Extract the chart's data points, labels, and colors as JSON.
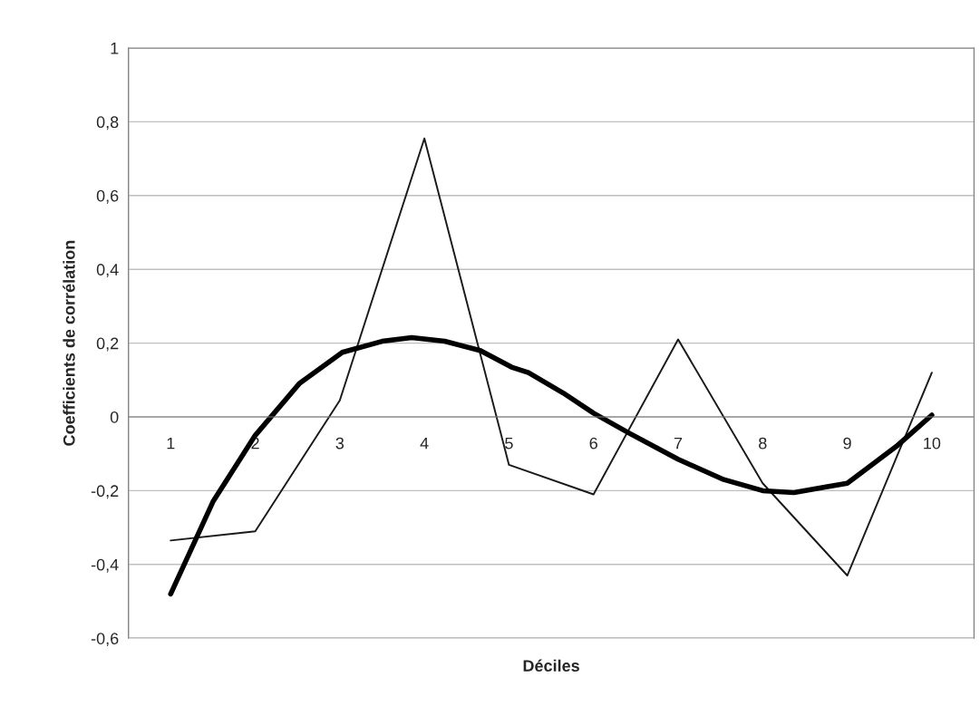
{
  "chart_data": {
    "type": "line",
    "xlabel": "Déciles",
    "ylabel": "Coefficients de corrélation",
    "x": [
      1,
      2,
      3,
      4,
      5,
      6,
      7,
      8,
      9,
      10
    ],
    "series": [
      {
        "color": "#1a1a1a",
        "values": [
          -0.335,
          -0.31,
          0.045,
          0.755,
          -0.13,
          -0.21,
          0.21,
          -0.18,
          -0.43,
          0.12
        ]
      },
      {
        "type": "line",
        "color": "#000000",
        "x": [
          1,
          1.31,
          1.5,
          2,
          2.52,
          3.03,
          3.5,
          3.85,
          4.24,
          4.66,
          5.03,
          5.23,
          5.64,
          6,
          6.43,
          7,
          7.54,
          8,
          8.37,
          8.75,
          9,
          9.58,
          10
        ],
        "values": [
          -0.48,
          -0.325,
          -0.23,
          -0.05,
          0.09,
          0.175,
          0.205,
          0.215,
          0.205,
          0.18,
          0.135,
          0.12,
          0.065,
          0.01,
          -0.045,
          -0.115,
          -0.17,
          -0.2,
          -0.205,
          -0.19,
          -0.18,
          -0.08,
          0.005
        ]
      }
    ],
    "xlim": [
      0.5,
      10.5
    ],
    "xticks": [
      1,
      2,
      3,
      4,
      5,
      6,
      7,
      8,
      9,
      10
    ],
    "ylim": [
      -0.6,
      1
    ],
    "yticks": [
      {
        "value": -0.6,
        "label": "-0,6"
      },
      {
        "value": -0.4,
        "label": "-0,4"
      },
      {
        "value": -0.2,
        "label": "-0,2"
      },
      0,
      {
        "value": 0.2,
        "label": "0,2"
      },
      {
        "value": 0.4,
        "label": "0,4"
      },
      {
        "value": 0.6,
        "label": "0,6"
      },
      {
        "value": 0.8,
        "label": "0,8"
      },
      1
    ],
    "grid": "y",
    "legend": false,
    "marker": "none",
    "line_style": "solid"
  }
}
